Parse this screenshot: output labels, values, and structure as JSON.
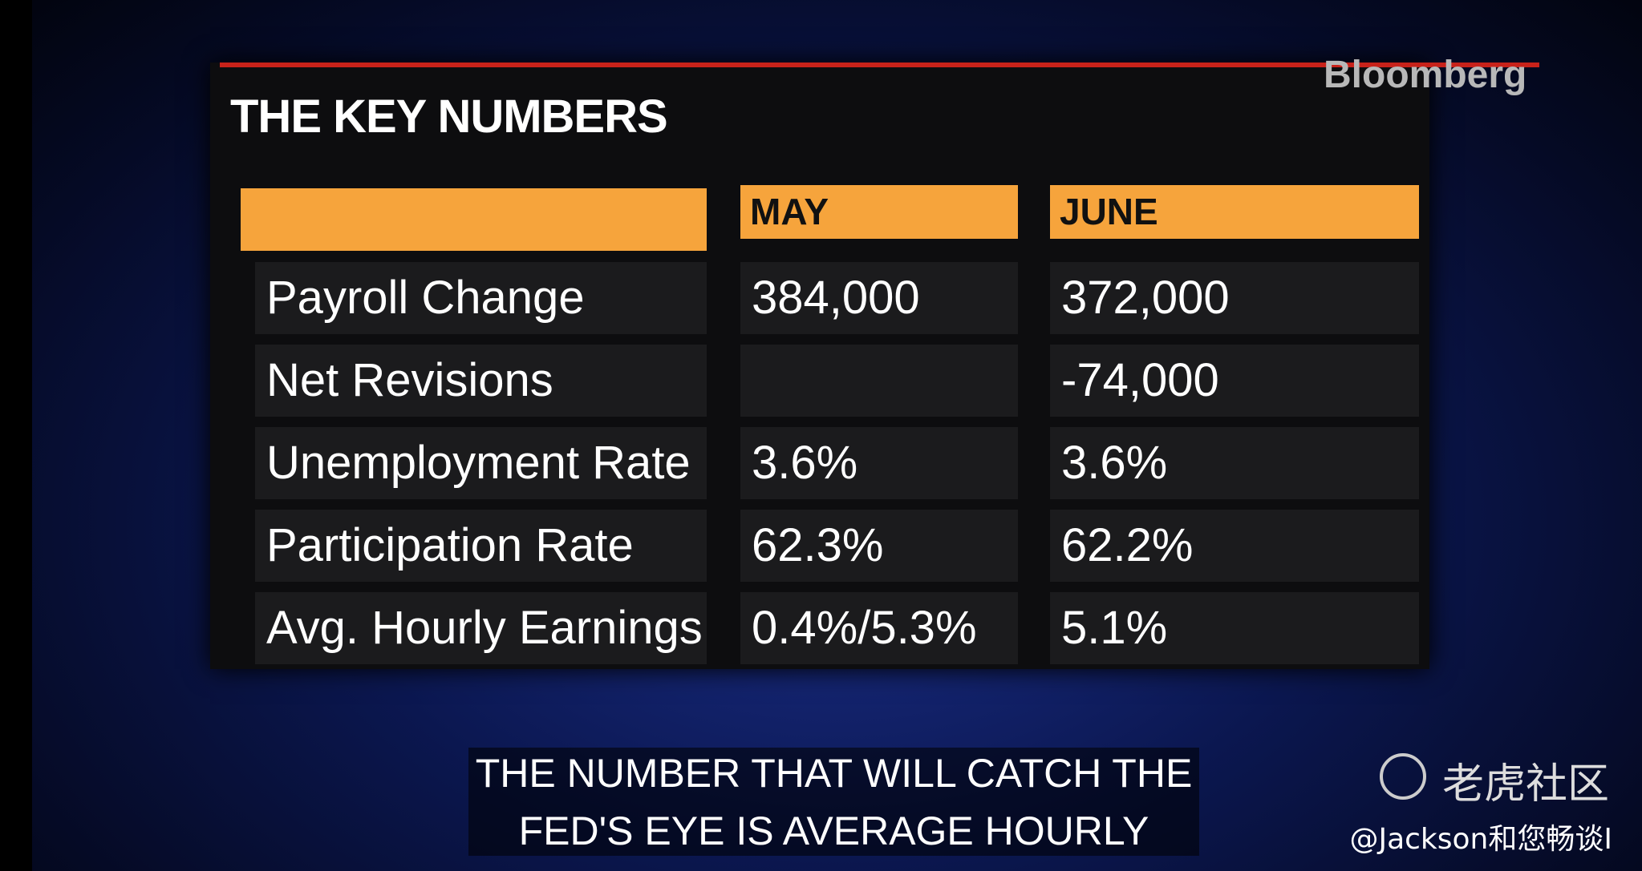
{
  "header": {
    "title": "THE KEY NUMBERS",
    "brand": "Bloomberg"
  },
  "table": {
    "columns": [
      "MAY",
      "JUNE"
    ],
    "rows": [
      [
        "Payroll Change",
        "384,000",
        "372,000"
      ],
      [
        "Net Revisions",
        null,
        "-74,000"
      ],
      [
        "Unemployment Rate",
        "3.6%",
        "3.6%"
      ],
      [
        "Participation Rate",
        "62.3%",
        "62.2%"
      ],
      [
        "Avg. Hourly Earnings",
        "0.4%/5.3%",
        "5.1%"
      ]
    ]
  },
  "caption": {
    "lines": [
      "THE NUMBER THAT WILL CATCH THE",
      "FED'S EYE IS AVERAGE HOURLY"
    ]
  },
  "watermark": {
    "name": "老虎社区",
    "user": "@Jackson和您畅谈I"
  }
}
